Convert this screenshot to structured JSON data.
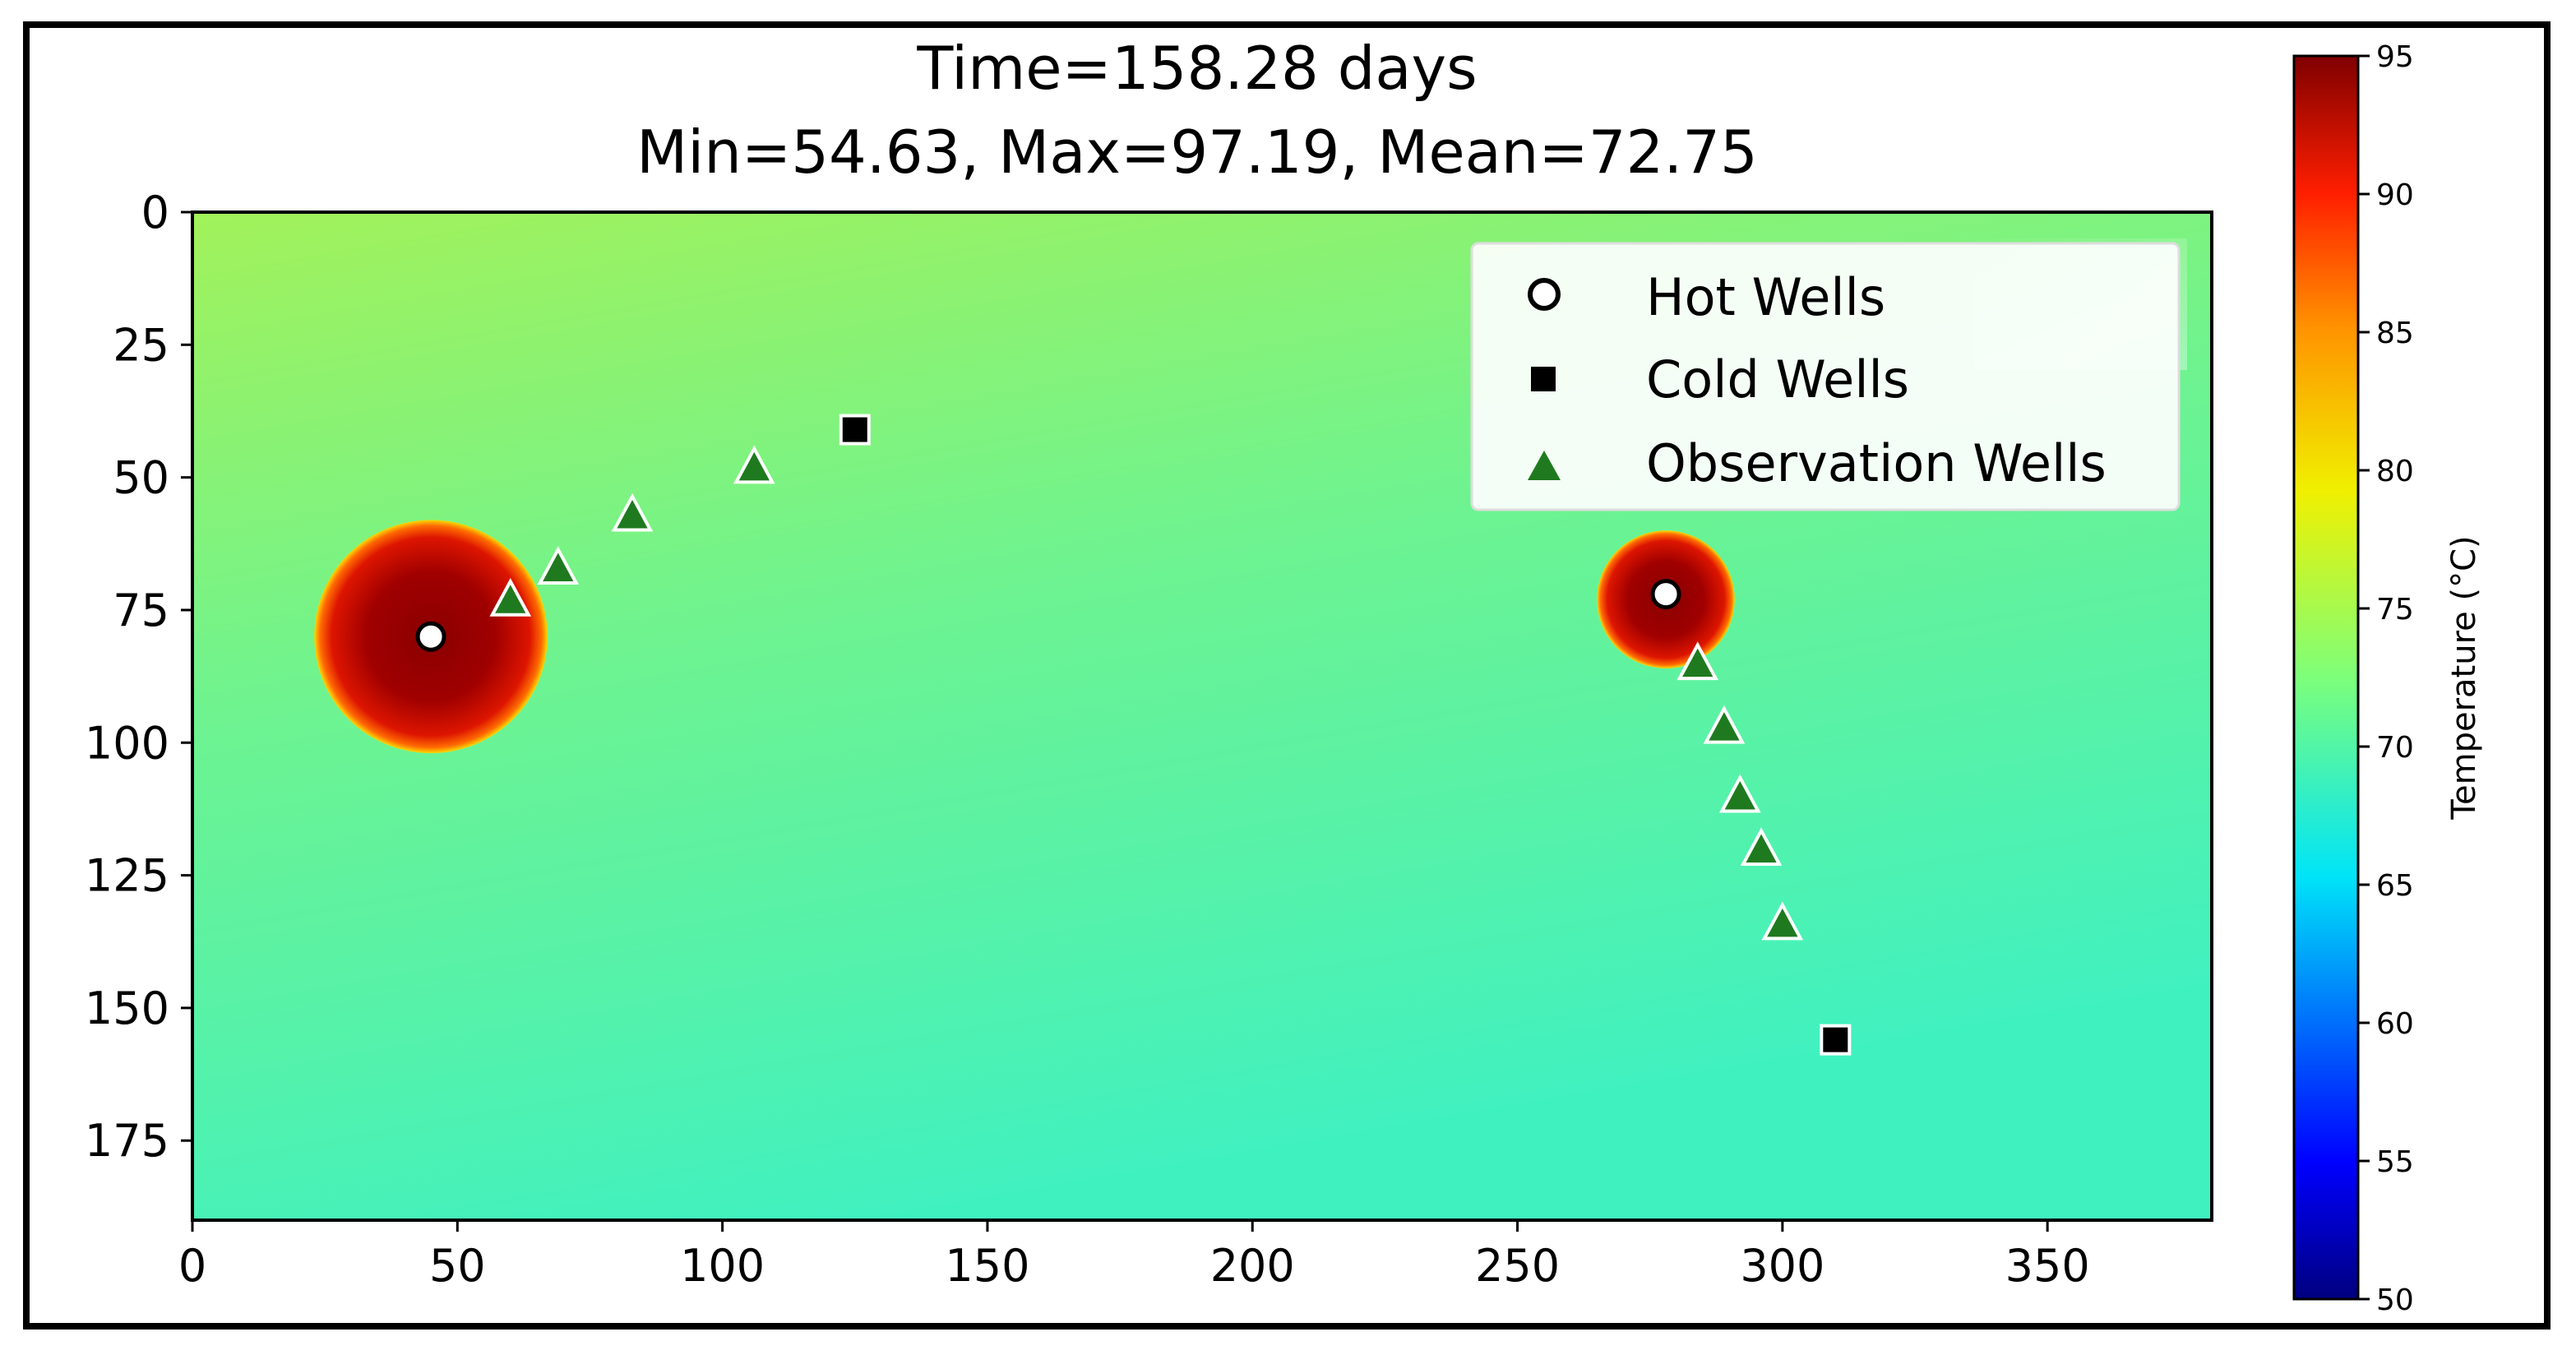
{
  "chart_data": {
    "type": "heatmap",
    "title": "Time=158.28 days",
    "subtitle": "Min=54.63, Max=97.19, Mean=72.75",
    "xlabel": "",
    "ylabel": "",
    "xlim": [
      0,
      381
    ],
    "ylim": [
      190,
      0
    ],
    "x_ticks": [
      0,
      50,
      100,
      150,
      200,
      250,
      300,
      350
    ],
    "y_ticks": [
      0,
      25,
      50,
      75,
      100,
      125,
      150,
      175
    ],
    "colorbar": {
      "label": "Temperature (°C)",
      "range": [
        50,
        95
      ],
      "ticks": [
        50,
        55,
        60,
        65,
        70,
        75,
        80,
        85,
        90,
        95
      ],
      "colormap": "jet"
    },
    "field": {
      "background_temperature": 72,
      "hot_zones": [
        {
          "x": 45,
          "y": 80,
          "radius": 22,
          "temperature": 95
        },
        {
          "x": 278,
          "y": 73,
          "radius": 13,
          "temperature": 95
        }
      ]
    },
    "legend": {
      "position": "top-right",
      "entries": [
        {
          "label": "Hot Wells",
          "marker": "circle",
          "color": "#ffffff"
        },
        {
          "label": "Cold Wells",
          "marker": "square",
          "color": "#000000"
        },
        {
          "label": "Observation Wells",
          "marker": "triangle",
          "color": "#1f7a1f"
        }
      ]
    },
    "series": [
      {
        "name": "Hot Wells",
        "marker": "circle",
        "points": [
          [
            45,
            80
          ],
          [
            278,
            72
          ]
        ]
      },
      {
        "name": "Cold Wells",
        "marker": "square",
        "points": [
          [
            125,
            41
          ],
          [
            310,
            156
          ]
        ]
      },
      {
        "name": "Observation Wells",
        "marker": "triangle",
        "points": [
          [
            60,
            73
          ],
          [
            69,
            67
          ],
          [
            83,
            57
          ],
          [
            106,
            48
          ],
          [
            284,
            85
          ],
          [
            289,
            97
          ],
          [
            292,
            110
          ],
          [
            296,
            120
          ],
          [
            300,
            134
          ]
        ]
      }
    ]
  }
}
